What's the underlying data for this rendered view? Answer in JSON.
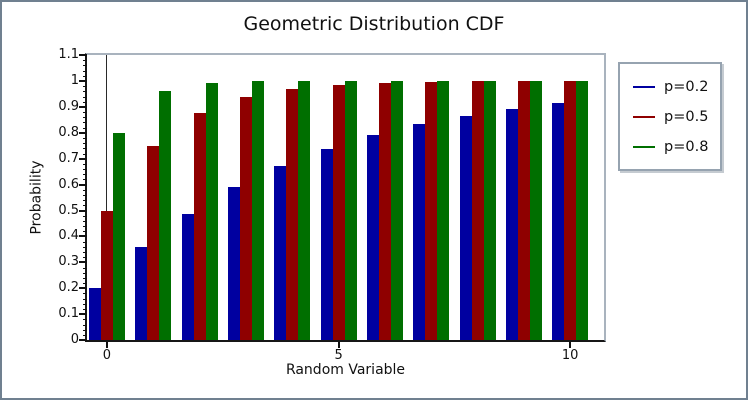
{
  "window": {
    "background": "#ffffff",
    "border_color": "#708090"
  },
  "chart_data": {
    "type": "bar",
    "title": "Geometric Distribution CDF",
    "xlabel": "Random Variable",
    "ylabel": "Probability",
    "categories": [
      0,
      1,
      2,
      3,
      4,
      5,
      6,
      7,
      8,
      9,
      10
    ],
    "series": [
      {
        "name": "p=0.2",
        "color": "#0000A0",
        "values": [
          0.2,
          0.36,
          0.488,
          0.5904,
          0.6723,
          0.7379,
          0.7903,
          0.8322,
          0.8658,
          0.8926,
          0.9141
        ]
      },
      {
        "name": "p=0.5",
        "color": "#8F0000",
        "values": [
          0.5,
          0.75,
          0.875,
          0.9375,
          0.9688,
          0.9844,
          0.9922,
          0.9961,
          0.998,
          0.999,
          0.9995
        ]
      },
      {
        "name": "p=0.8",
        "color": "#006F00",
        "values": [
          0.8,
          0.96,
          0.992,
          0.9984,
          0.99968,
          0.99994,
          0.99999,
          1,
          1,
          1,
          1
        ]
      }
    ],
    "ylim": [
      0,
      1.1
    ],
    "xlim": [
      -0.43,
      10.73
    ],
    "bar_width": 0.26,
    "zero_line_x": 0,
    "grid": false,
    "legend_position": "right-outside",
    "xticks": {
      "values": [
        0,
        5,
        10
      ],
      "labels": [
        "0",
        "5",
        "10"
      ]
    },
    "yticks": {
      "values": [
        0,
        0.1,
        0.2,
        0.3,
        0.4,
        0.5,
        0.6,
        0.7,
        0.8,
        0.9,
        1,
        1.1
      ],
      "labels": [
        "0",
        "0.1",
        "0.2",
        "0.3",
        "0.4",
        "0.5",
        "0.6",
        "0.7",
        "0.8",
        "0.9",
        "1",
        "1.1"
      ]
    },
    "y_minor_step": 0.02
  }
}
